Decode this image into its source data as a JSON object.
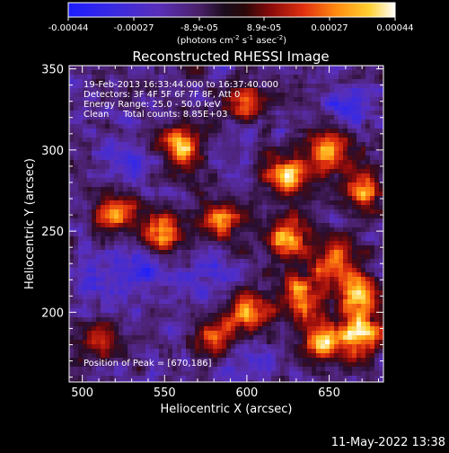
{
  "chart_data": {
    "type": "heatmap",
    "title": "Reconstructed RHESSI Image",
    "xlabel": "Heliocentric X (arcsec)",
    "ylabel": "Heliocentric Y (arcsec)",
    "xlim": [
      492,
      683
    ],
    "ylim": [
      157,
      352
    ],
    "x_ticks": [
      500,
      550,
      600,
      650
    ],
    "y_ticks": [
      200,
      250,
      300,
      350
    ],
    "colorbar": {
      "range": [
        -0.00044,
        0.00044
      ],
      "ticks": [
        "-0.00044",
        "-0.00027",
        "-8.9e-05",
        "8.9e-05",
        "0.00027",
        "0.00044"
      ],
      "units_prefix": "(photons cm",
      "units_sup1": "-2",
      "units_mid1": " s",
      "units_sup2": "-1",
      "units_mid2": " asec",
      "units_sup3": "-2",
      "units_suffix": ")"
    },
    "annotations": {
      "time_range": "19-Feb-2013 16:33:44.000 to 16:37:40.000",
      "detectors": "Detectors: 3F 4F 5F 6F 7F 8F, Att 0",
      "energy": "Energy Range: 25.0 - 50.0 keV",
      "method": "Clean     Total counts: 8.85E+03",
      "peak": "Position of Peak = [670,186]"
    },
    "bright_regions": [
      {
        "x": 560,
        "y": 302,
        "intensity": 0.9
      },
      {
        "x": 600,
        "y": 330,
        "intensity": 0.7
      },
      {
        "x": 625,
        "y": 285,
        "intensity": 0.85
      },
      {
        "x": 650,
        "y": 300,
        "intensity": 0.8
      },
      {
        "x": 670,
        "y": 275,
        "intensity": 0.75
      },
      {
        "x": 520,
        "y": 262,
        "intensity": 0.75
      },
      {
        "x": 548,
        "y": 248,
        "intensity": 0.9
      },
      {
        "x": 585,
        "y": 258,
        "intensity": 0.8
      },
      {
        "x": 625,
        "y": 245,
        "intensity": 0.85
      },
      {
        "x": 652,
        "y": 232,
        "intensity": 0.85
      },
      {
        "x": 668,
        "y": 210,
        "intensity": 0.9
      },
      {
        "x": 632,
        "y": 210,
        "intensity": 0.8
      },
      {
        "x": 645,
        "y": 182,
        "intensity": 0.85
      },
      {
        "x": 670,
        "y": 186,
        "intensity": 1.0
      },
      {
        "x": 600,
        "y": 200,
        "intensity": 0.75
      },
      {
        "x": 580,
        "y": 185,
        "intensity": 0.6
      },
      {
        "x": 510,
        "y": 185,
        "intensity": 0.5
      }
    ],
    "dark_regions": [
      {
        "x": 540,
        "y": 228,
        "intensity": 0.8
      },
      {
        "x": 510,
        "y": 215,
        "intensity": 0.7
      },
      {
        "x": 580,
        "y": 225,
        "intensity": 0.6
      },
      {
        "x": 660,
        "y": 328,
        "intensity": 0.7
      },
      {
        "x": 525,
        "y": 295,
        "intensity": 0.6
      },
      {
        "x": 600,
        "y": 170,
        "intensity": 0.5
      }
    ]
  },
  "footer": {
    "timestamp": "11-May-2022 13:38"
  }
}
